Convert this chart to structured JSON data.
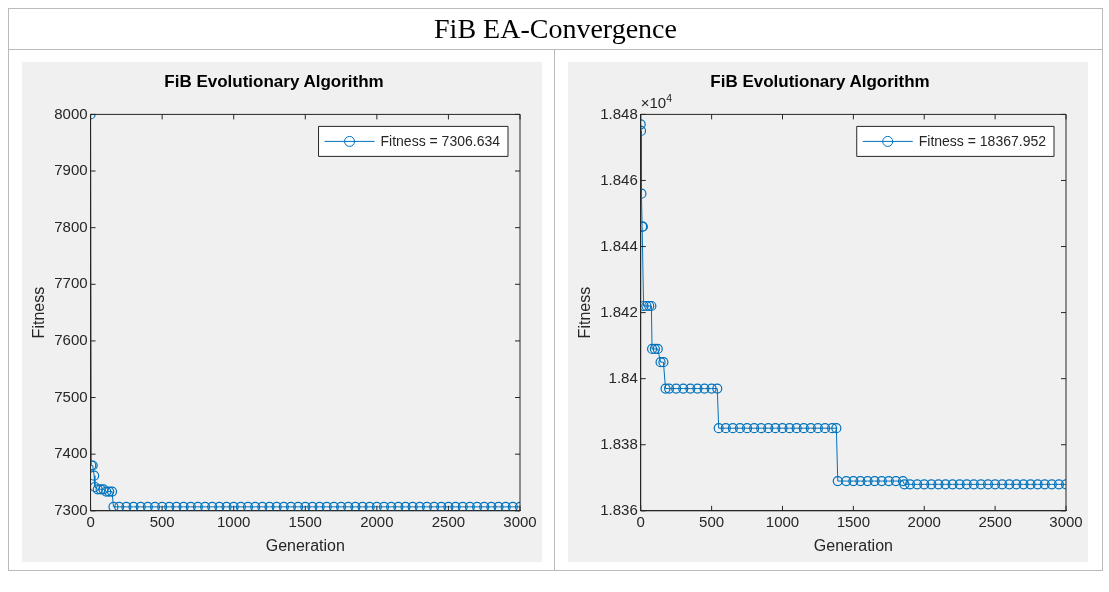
{
  "chart_data": [
    {
      "type": "other",
      "title": "FiB EA-Convergence"
    },
    {
      "type": "line",
      "title": "FiB Evolutionary Algorithm",
      "xlabel": "Generation",
      "ylabel": "Fitness",
      "x": [
        0,
        5,
        15,
        25,
        30,
        50,
        70,
        90,
        110,
        130,
        150,
        160,
        200,
        250,
        300,
        350,
        400,
        450,
        500,
        550,
        600,
        650,
        700,
        750,
        800,
        850,
        900,
        950,
        1000,
        1050,
        1100,
        1150,
        1200,
        1250,
        1300,
        1350,
        1400,
        1450,
        1500,
        1550,
        1600,
        1650,
        1700,
        1750,
        1800,
        1850,
        1900,
        1950,
        2000,
        2050,
        2100,
        2150,
        2200,
        2250,
        2300,
        2350,
        2400,
        2450,
        2500,
        2550,
        2600,
        2650,
        2700,
        2750,
        2800,
        2850,
        2900,
        2950,
        3000
      ],
      "series": [
        {
          "name": "Fitness = 7306.634",
          "color": "#0072bd",
          "values": [
            8000,
            7380,
            7380,
            7362,
            7342,
            7338,
            7338,
            7338,
            7334,
            7334,
            7334,
            7307,
            7307,
            7307,
            7307,
            7307,
            7307,
            7307,
            7307,
            7307,
            7307,
            7307,
            7307,
            7307,
            7307,
            7307,
            7307,
            7307,
            7307,
            7307,
            7307,
            7307,
            7307,
            7307,
            7307,
            7307,
            7307,
            7307,
            7307,
            7307,
            7307,
            7307,
            7307,
            7307,
            7307,
            7307,
            7307,
            7307,
            7307,
            7307,
            7307,
            7307,
            7307,
            7307,
            7307,
            7307,
            7307,
            7307,
            7307,
            7307,
            7307,
            7307,
            7307,
            7307,
            7307,
            7307,
            7307,
            7307,
            7307
          ]
        }
      ],
      "xlim": [
        0,
        3000
      ],
      "xticks": [
        0,
        500,
        1000,
        1500,
        2000,
        2500,
        3000
      ],
      "ylim": [
        7300,
        8000
      ],
      "yticks": [
        7300,
        7400,
        7500,
        7600,
        7700,
        7800,
        7900,
        8000
      ],
      "marker": "circle",
      "legend": "top right"
    },
    {
      "type": "line",
      "title": "FiB Evolutionary Algorithm",
      "xlabel": "Generation",
      "ylabel": "Fitness",
      "x": [
        0,
        2,
        5,
        10,
        15,
        20,
        40,
        60,
        75,
        80,
        100,
        120,
        140,
        160,
        175,
        200,
        250,
        300,
        350,
        400,
        450,
        500,
        540,
        550,
        600,
        650,
        700,
        750,
        800,
        850,
        900,
        950,
        1000,
        1050,
        1100,
        1150,
        1200,
        1250,
        1300,
        1350,
        1380,
        1390,
        1450,
        1500,
        1550,
        1600,
        1650,
        1700,
        1750,
        1800,
        1850,
        1860,
        1900,
        1950,
        2000,
        2050,
        2100,
        2150,
        2200,
        2250,
        2300,
        2350,
        2400,
        2450,
        2500,
        2550,
        2600,
        2650,
        2700,
        2750,
        2800,
        2850,
        2900,
        2950,
        3000
      ],
      "series": [
        {
          "name": "Fitness = 18367.952",
          "color": "#0072bd",
          "values": [
            1.8477,
            1.8475,
            1.8456,
            1.8446,
            1.8446,
            1.8422,
            1.8422,
            1.8422,
            1.8422,
            1.8409,
            1.8409,
            1.8409,
            1.8405,
            1.8405,
            1.8397,
            1.8397,
            1.8397,
            1.8397,
            1.8397,
            1.8397,
            1.8397,
            1.8397,
            1.8397,
            1.8385,
            1.8385,
            1.8385,
            1.8385,
            1.8385,
            1.8385,
            1.8385,
            1.8385,
            1.8385,
            1.8385,
            1.8385,
            1.8385,
            1.8385,
            1.8385,
            1.8385,
            1.8385,
            1.8385,
            1.8385,
            1.8369,
            1.8369,
            1.8369,
            1.8369,
            1.8369,
            1.8369,
            1.8369,
            1.8369,
            1.8369,
            1.8369,
            1.8368,
            1.8368,
            1.8368,
            1.8368,
            1.8368,
            1.8368,
            1.8368,
            1.8368,
            1.8368,
            1.8368,
            1.8368,
            1.8368,
            1.8368,
            1.8368,
            1.8368,
            1.8368,
            1.8368,
            1.8368,
            1.8368,
            1.8368,
            1.8368,
            1.8368,
            1.8368,
            1.8368
          ]
        }
      ],
      "xlim": [
        0,
        3000
      ],
      "xticks": [
        0,
        500,
        1000,
        1500,
        2000,
        2500,
        3000
      ],
      "ylim": [
        1.836,
        1.848
      ],
      "yticks": [
        1.836,
        1.838,
        1.84,
        1.842,
        1.844,
        1.846,
        1.848
      ],
      "marker": "circle",
      "legend": "top right",
      "annotations": [
        "×10$^{4}$"
      ]
    }
  ]
}
